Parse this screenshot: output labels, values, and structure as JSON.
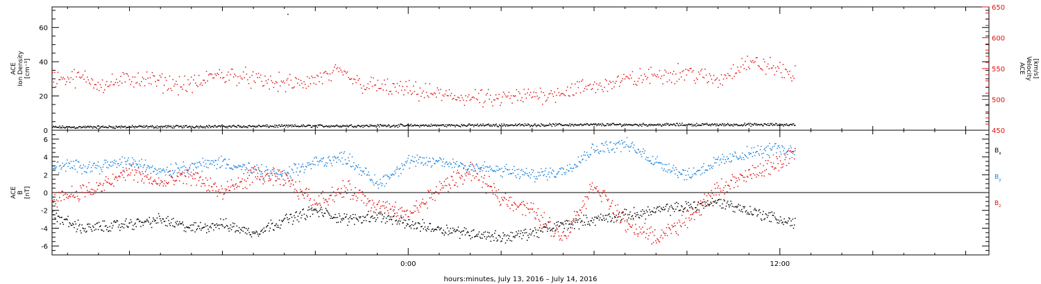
{
  "chart_data": {
    "x_label": "hours:minutes, July 13, 2016 – July 14, 2016",
    "x_ticks": [
      {
        "t": 0,
        "label": "0:00"
      },
      {
        "t": 12,
        "label": "12:00"
      }
    ],
    "x_range": [
      -11.5,
      18.75
    ],
    "data_end": 12.5,
    "panels": [
      {
        "type": "scatter",
        "ylabel_lines": [
          "ACE",
          "Ion Density",
          "[cm⁻³]"
        ],
        "ylim": [
          0,
          72
        ],
        "yticks": [
          0,
          20,
          40,
          60
        ],
        "right_axis": {
          "ylabel_lines": [
            "ACE",
            "Velocity",
            "[km/s]"
          ],
          "ylim": [
            450,
            650
          ],
          "yticks": [
            450,
            500,
            550,
            600,
            650
          ],
          "color": "#e01010"
        },
        "series": [
          {
            "axis": "left",
            "color": "#000000",
            "base": [
              [
                -11.5,
                2.0
              ],
              [
                -6,
                2.5
              ],
              [
                0,
                3.0
              ],
              [
                6,
                3.5
              ],
              [
                12.5,
                3.5
              ]
            ],
            "noise": 1.0
          },
          {
            "axis": "right",
            "color": "#e01010",
            "base": [
              [
                -11.5,
                535
              ],
              [
                -10.5,
                535
              ],
              [
                -9.8,
                525
              ],
              [
                -8.8,
                535
              ],
              [
                -8.2,
                530
              ],
              [
                -7.5,
                525
              ],
              [
                -6.8,
                525
              ],
              [
                -6.3,
                540
              ],
              [
                -5.5,
                540
              ],
              [
                -4.8,
                530
              ],
              [
                -3.5,
                525
              ],
              [
                -2.2,
                545
              ],
              [
                -1.5,
                525
              ],
              [
                0,
                515
              ],
              [
                1.5,
                505
              ],
              [
                2.8,
                500
              ],
              [
                4.5,
                510
              ],
              [
                5.8,
                520
              ],
              [
                6.8,
                530
              ],
              [
                8.0,
                540
              ],
              [
                9.0,
                545
              ],
              [
                10.0,
                530
              ],
              [
                10.8,
                560
              ],
              [
                11.6,
                555
              ],
              [
                12.5,
                540
              ]
            ],
            "noise": 18
          }
        ]
      },
      {
        "type": "scatter",
        "ylabel_lines": [
          "ACE",
          "B",
          "[nT]"
        ],
        "ylim": [
          -7,
          7
        ],
        "yticks": [
          -6,
          -4,
          -2,
          0,
          2,
          4,
          6
        ],
        "zero_line": true,
        "series": [
          {
            "name": "Bx",
            "color": "#000000",
            "base": [
              [
                -11.5,
                -2.5
              ],
              [
                -10.5,
                -4.0
              ],
              [
                -9,
                -3.5
              ],
              [
                -8,
                -3.0
              ],
              [
                -7,
                -4.0
              ],
              [
                -6,
                -3.5
              ],
              [
                -5,
                -4.5
              ],
              [
                -4,
                -3.0
              ],
              [
                -3,
                -2.0
              ],
              [
                -2,
                -3.0
              ],
              [
                -1,
                -2.5
              ],
              [
                0,
                -3.5
              ],
              [
                1,
                -4.0
              ],
              [
                2,
                -4.5
              ],
              [
                3,
                -5.0
              ],
              [
                4,
                -4.5
              ],
              [
                5,
                -3.5
              ],
              [
                6,
                -3.0
              ],
              [
                7,
                -2.5
              ],
              [
                8,
                -2.0
              ],
              [
                9,
                -1.5
              ],
              [
                10,
                -1.0
              ],
              [
                11,
                -2.0
              ],
              [
                12,
                -3.0
              ],
              [
                12.5,
                -3.5
              ]
            ],
            "noise": 0.8
          },
          {
            "name": "By",
            "color": "#1a80d9",
            "base": [
              [
                -11.5,
                3.0
              ],
              [
                -10,
                3.0
              ],
              [
                -9,
                3.5
              ],
              [
                -8,
                2.5
              ],
              [
                -7,
                3.0
              ],
              [
                -6,
                3.5
              ],
              [
                -5,
                2.5
              ],
              [
                -4,
                2.0
              ],
              [
                -3,
                3.5
              ],
              [
                -2,
                4.0
              ],
              [
                -1,
                1.0
              ],
              [
                0,
                3.5
              ],
              [
                1,
                3.5
              ],
              [
                2,
                3.0
              ],
              [
                3,
                2.5
              ],
              [
                4,
                2.0
              ],
              [
                5,
                2.5
              ],
              [
                6,
                5.0
              ],
              [
                7,
                5.5
              ],
              [
                8,
                3.5
              ],
              [
                9,
                2.0
              ],
              [
                10,
                3.5
              ],
              [
                11,
                4.5
              ],
              [
                12,
                5.0
              ],
              [
                12.5,
                4.5
              ]
            ],
            "noise": 0.9
          },
          {
            "name": "Bz",
            "color": "#e01010",
            "base": [
              [
                -11.5,
                -0.5
              ],
              [
                -10,
                0.5
              ],
              [
                -9,
                2.5
              ],
              [
                -8,
                1.0
              ],
              [
                -7,
                2.0
              ],
              [
                -6,
                0.0
              ],
              [
                -5,
                2.0
              ],
              [
                -4,
                1.5
              ],
              [
                -3,
                -1.0
              ],
              [
                -2,
                0.5
              ],
              [
                -1,
                -1.5
              ],
              [
                0,
                -2.5
              ],
              [
                1,
                0.5
              ],
              [
                2,
                2.5
              ],
              [
                3,
                -0.5
              ],
              [
                4,
                -2.0
              ],
              [
                5,
                -5.0
              ],
              [
                6,
                1.0
              ],
              [
                7,
                -3.5
              ],
              [
                8,
                -5.0
              ],
              [
                9,
                -3.0
              ],
              [
                10,
                0.5
              ],
              [
                11,
                2.0
              ],
              [
                12,
                3.5
              ],
              [
                12.5,
                4.5
              ]
            ],
            "noise": 1.2
          }
        ],
        "legend": [
          "B",
          "B",
          "B"
        ],
        "legend_subs": [
          "x",
          "y",
          "z"
        ]
      }
    ]
  }
}
